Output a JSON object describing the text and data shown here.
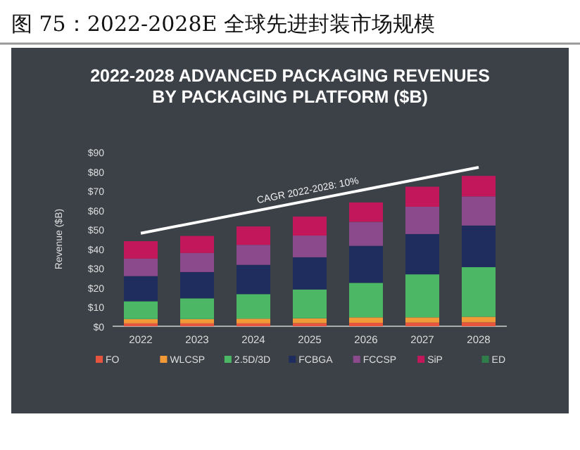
{
  "chart_data": {
    "type": "bar",
    "title": "图 75：2022-2028E 全球先进封装市场规模",
    "subtitle": "2022-2028 ADVANCED PACKAGING REVENUES\nBY PACKAGING PLATFORM ($B)",
    "ylabel": "Revenue ($B)",
    "categories": [
      "2022",
      "2023",
      "2024",
      "2025",
      "2026",
      "2027",
      "2028"
    ],
    "stacked": true,
    "legend": "bottom",
    "ylim": [
      0,
      90
    ],
    "yticks": [
      {
        "value": 0,
        "label": "$0"
      },
      {
        "value": 10,
        "label": "$10"
      },
      {
        "value": 20,
        "label": "$20"
      },
      {
        "value": 30,
        "label": "$30"
      },
      {
        "value": 40,
        "label": "$40"
      },
      {
        "value": 50,
        "label": "$50"
      },
      {
        "value": 60,
        "label": "$60"
      },
      {
        "value": 70,
        "label": "$70"
      },
      {
        "value": 80,
        "label": "$80"
      },
      {
        "value": 90,
        "label": "$90"
      }
    ],
    "series": [
      {
        "name": "FO",
        "color": "#e8553e",
        "values": [
          1.5,
          1.5,
          1.5,
          1.6,
          1.8,
          1.9,
          2.0
        ]
      },
      {
        "name": "WLCSP",
        "color": "#f39a38",
        "values": [
          2.2,
          2.2,
          2.4,
          2.5,
          2.8,
          2.7,
          2.9
        ]
      },
      {
        "name": "2.5D/3D",
        "color": "#4cb865",
        "values": [
          9.2,
          10.7,
          12.7,
          14.9,
          17.8,
          22.2,
          25.6
        ]
      },
      {
        "name": "FCBGA",
        "color": "#1f2d5e",
        "values": [
          13,
          13.6,
          15.1,
          16.6,
          19.1,
          20.8,
          21.5
        ]
      },
      {
        "name": "FCCSP",
        "color": "#8b4a8c",
        "values": [
          9,
          9.8,
          10.3,
          11.2,
          12.4,
          14.1,
          15
        ]
      },
      {
        "name": "SiP",
        "color": "#c2185b",
        "values": [
          9,
          8.8,
          9.5,
          9.8,
          10,
          10.3,
          10.6
        ]
      },
      {
        "name": "ED",
        "color": "#2e7d4a",
        "values": [
          0,
          0,
          0,
          0,
          0,
          0,
          0
        ]
      },
      {
        "type": "line",
        "color": "#ffffff",
        "values": [
          48,
          null,
          null,
          null,
          null,
          null,
          82
        ]
      }
    ],
    "annotations": [
      "CAGR 2022-2028: 10%"
    ]
  }
}
